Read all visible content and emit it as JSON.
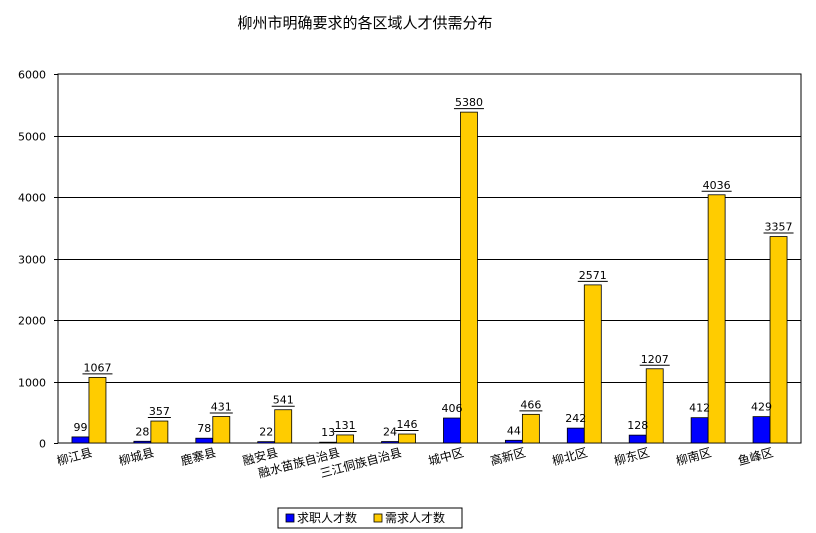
{
  "chart_data": {
    "type": "bar",
    "title": "柳州市明确要求的各区域人才供需分布",
    "categories": [
      "柳江县",
      "柳城县",
      "鹿寨县",
      "融安县",
      "融水苗族自治县",
      "三江侗族自治县",
      "城中区",
      "高新区",
      "柳北区",
      "柳东区",
      "柳南区",
      "鱼峰区"
    ],
    "series": [
      {
        "name": "求职人才数",
        "color": "#0000ff",
        "values": [
          99,
          28,
          78,
          22,
          13,
          24,
          406,
          44,
          242,
          128,
          412,
          429
        ]
      },
      {
        "name": "需求人才数",
        "color": "#ffcc00",
        "values": [
          1067,
          357,
          431,
          541,
          131,
          146,
          5380,
          466,
          2571,
          1207,
          4036,
          3357
        ]
      }
    ],
    "ylim": [
      0,
      6000
    ],
    "yticks": [
      0,
      1000,
      2000,
      3000,
      4000,
      5000,
      6000
    ],
    "grid": true,
    "legend_position": "bottom"
  }
}
